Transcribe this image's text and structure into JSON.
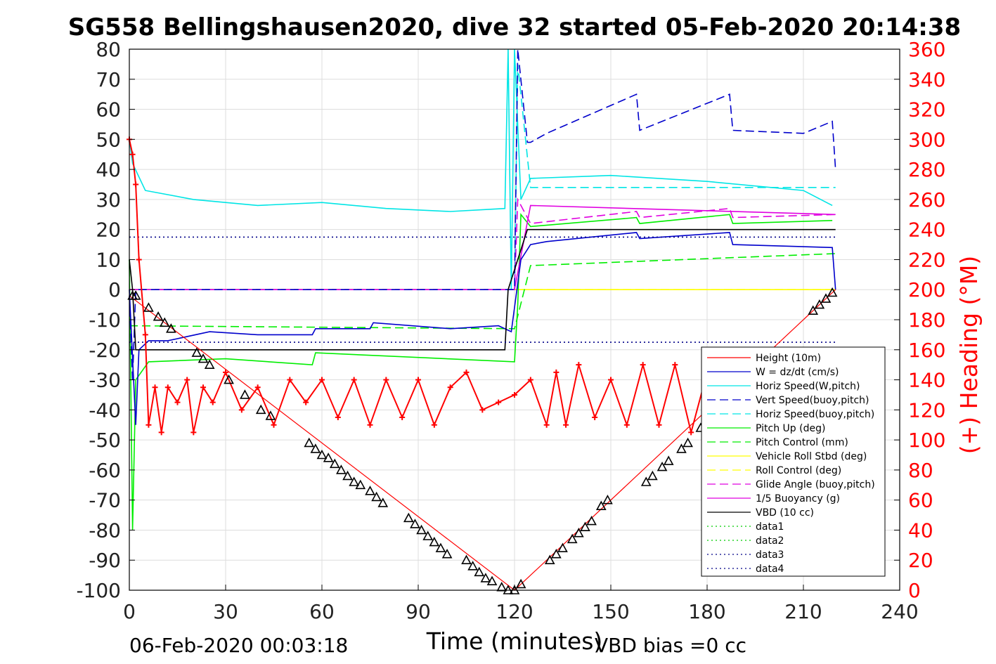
{
  "chart_data": {
    "type": "line",
    "title": "SG558 Bellingshausen2020, dive 32 started 05-Feb-2020 20:14:38",
    "xlabel": "Time (minutes)",
    "ylabel_right": "(+) Heading (°M)",
    "xlim": [
      0,
      240
    ],
    "ylim": [
      -100,
      80
    ],
    "ylim_right": [
      0,
      360
    ],
    "xticks": [
      "0",
      "30",
      "60",
      "90",
      "120",
      "150",
      "180",
      "210",
      "240"
    ],
    "yticks": [
      "80",
      "70",
      "60",
      "50",
      "40",
      "30",
      "20",
      "10",
      "0",
      "-10",
      "-20",
      "-30",
      "-40",
      "-50",
      "-60",
      "-70",
      "-80",
      "-90",
      "-100"
    ],
    "yticks_right": [
      "360",
      "340",
      "320",
      "300",
      "280",
      "260",
      "240",
      "220",
      "200",
      "180",
      "160",
      "140",
      "120",
      "100",
      "80",
      "60",
      "40",
      "20",
      "0"
    ],
    "grid": true,
    "legend_position": "lower-right",
    "footer_left": "06-Feb-2020 00:03:18",
    "footer_right": "VBD bias =0 cc",
    "colors": {
      "height": "#ff0000",
      "w": "#0000cc",
      "horiz": "#00e5e5",
      "pitch": "#00ee00",
      "roll": "#ffff00",
      "glide": "#e000e0",
      "vbd": "#000000",
      "heading": "#ff0000",
      "right_axis": "#ff0000",
      "data": "#00aa00",
      "data_dark": "#000088"
    },
    "series": [
      {
        "name": "Height (10m)",
        "x": [
          0,
          120,
          220
        ],
        "y": [
          -2,
          -100,
          0
        ]
      },
      {
        "name": "W = dz/dt (cm/s)",
        "x": [
          0,
          2,
          3,
          6,
          12,
          25,
          40,
          57,
          58,
          75,
          76,
          100,
          115,
          119,
          122,
          125,
          130,
          158,
          159,
          187,
          188,
          219,
          220
        ],
        "y": [
          0,
          -45,
          -20,
          -17,
          -17,
          -14,
          -15,
          -15,
          -13,
          -13,
          -11,
          -13,
          -12,
          -14,
          10,
          15,
          16,
          19,
          17,
          19,
          15,
          14,
          0
        ]
      },
      {
        "name": "Horiz Speed(W,pitch)",
        "x": [
          0,
          1,
          5,
          20,
          40,
          60,
          80,
          100,
          117,
          118,
          119,
          120,
          122,
          125,
          150,
          180,
          210,
          219
        ],
        "y": [
          50,
          42,
          33,
          30,
          28,
          29,
          27,
          26,
          27,
          80,
          0,
          80,
          30,
          37,
          38,
          36,
          33,
          28
        ]
      },
      {
        "name": "Vert Speed(buoy,pitch)",
        "x": [
          0,
          1,
          2,
          120,
          121,
          124,
          125,
          130,
          158,
          159,
          187,
          188,
          210,
          219,
          220
        ],
        "y": [
          -2,
          -30,
          0,
          0,
          80,
          49,
          49,
          52,
          65,
          53,
          65,
          53,
          52,
          56,
          40
        ]
      },
      {
        "name": "Horiz Speed(buoy,pitch)",
        "x": [
          0,
          120,
          121,
          125,
          220
        ],
        "y": [
          0,
          0,
          75,
          34,
          34
        ]
      },
      {
        "name": "Pitch Up (deg)",
        "x": [
          0,
          1,
          2,
          6,
          30,
          57,
          58,
          120,
          121,
          122,
          125,
          158,
          159,
          187,
          188,
          219
        ],
        "y": [
          10,
          -80,
          -30,
          -24,
          -23,
          -25,
          -21,
          -24,
          -5,
          25,
          21,
          24,
          22,
          25,
          22,
          23
        ]
      },
      {
        "name": "Pitch Control (mm)",
        "x": [
          0,
          120,
          125,
          220
        ],
        "y": [
          -12,
          -13,
          8,
          12
        ]
      },
      {
        "name": "Vehicle Roll Stbd (deg)",
        "x": [
          0,
          220
        ],
        "y": [
          0,
          0
        ]
      },
      {
        "name": "Roll Control (deg)",
        "x": [
          0,
          220
        ],
        "y": [
          0,
          0
        ]
      },
      {
        "name": "Glide Angle (buoy,pitch)",
        "x": [
          0,
          120,
          121,
          125,
          158,
          159,
          187,
          188,
          220
        ],
        "y": [
          0,
          0,
          30,
          22,
          26,
          24,
          27,
          24,
          25
        ]
      },
      {
        "name": "1/5 Buoyancy (g)",
        "x": [
          0,
          120,
          125,
          220
        ],
        "y": [
          0,
          0,
          28,
          25
        ]
      },
      {
        "name": "VBD (10 cc)",
        "x": [
          0,
          1,
          2,
          117,
          118,
          124,
          125,
          220
        ],
        "y": [
          10,
          0,
          -20,
          -20,
          0,
          20,
          20,
          20
        ]
      },
      {
        "name": "data1",
        "x": [],
        "y": []
      },
      {
        "name": "data2",
        "x": [],
        "y": []
      },
      {
        "name": "data3",
        "x": [
          0,
          220
        ],
        "y": [
          17.5,
          17.5
        ]
      },
      {
        "name": "data4",
        "x": [
          0,
          220
        ],
        "y": [
          -17.5,
          -17.5
        ]
      }
    ],
    "heading_deg": {
      "x": [
        0,
        1,
        2,
        3,
        5,
        6,
        8,
        10,
        12,
        15,
        18,
        20,
        23,
        26,
        30,
        35,
        40,
        45,
        50,
        55,
        60,
        65,
        70,
        75,
        80,
        85,
        90,
        95,
        100,
        105,
        110,
        115,
        120,
        125,
        130,
        133,
        136,
        140,
        145,
        150,
        155,
        160,
        165,
        170,
        175,
        180,
        185,
        190
      ],
      "y": [
        300,
        290,
        270,
        220,
        170,
        110,
        135,
        105,
        135,
        125,
        140,
        105,
        135,
        125,
        145,
        120,
        135,
        110,
        140,
        125,
        140,
        115,
        140,
        110,
        140,
        115,
        140,
        110,
        135,
        145,
        120,
        125,
        130,
        140,
        110,
        145,
        110,
        150,
        115,
        140,
        110,
        150,
        110,
        150,
        105,
        145,
        115,
        130
      ]
    },
    "markers": {
      "x": [
        1,
        2,
        6,
        9,
        11,
        13,
        21,
        23,
        25,
        31,
        36,
        41,
        44,
        56,
        58,
        60,
        62,
        64,
        66,
        68,
        70,
        72,
        75,
        77,
        79,
        87,
        89,
        91,
        93,
        95,
        97,
        99,
        105,
        107,
        109,
        111,
        113,
        116,
        118,
        120,
        122,
        131,
        133,
        135,
        138,
        140,
        142,
        144,
        147,
        149,
        161,
        163,
        166,
        168,
        172,
        174,
        178,
        180,
        213,
        215,
        217,
        219
      ],
      "y": [
        -2,
        -2,
        -6,
        -9,
        -11,
        -13,
        -21,
        -23,
        -25,
        -30,
        -35,
        -40,
        -42,
        -51,
        -53,
        -55,
        -56,
        -58,
        -60,
        -62,
        -64,
        -65,
        -67,
        -69,
        -71,
        -76,
        -78,
        -80,
        -82,
        -84,
        -86,
        -88,
        -90,
        -92,
        -94,
        -96,
        -97,
        -99,
        -100,
        -100,
        -98,
        -90,
        -88,
        -86,
        -83,
        -81,
        -79,
        -77,
        -72,
        -70,
        -64,
        -62,
        -59,
        -57,
        -53,
        -51,
        -46,
        -44,
        -7,
        -5,
        -3,
        -1
      ]
    }
  },
  "legend": {
    "items": [
      {
        "label": "Height (10m)",
        "color": "#ff0000",
        "style": "solid"
      },
      {
        "label": "W = dz/dt (cm/s)",
        "color": "#0000cc",
        "style": "solid"
      },
      {
        "label": "Horiz Speed(W,pitch)",
        "color": "#00e5e5",
        "style": "solid"
      },
      {
        "label": "Vert Speed(buoy,pitch)",
        "color": "#0000cc",
        "style": "dashed"
      },
      {
        "label": "Horiz Speed(buoy,pitch)",
        "color": "#00e5e5",
        "style": "dashed"
      },
      {
        "label": "Pitch Up (deg)",
        "color": "#00ee00",
        "style": "solid"
      },
      {
        "label": "Pitch Control (mm)",
        "color": "#00ee00",
        "style": "dashed"
      },
      {
        "label": "Vehicle Roll Stbd (deg)",
        "color": "#ffff00",
        "style": "solid"
      },
      {
        "label": "Roll Control (deg)",
        "color": "#ffff00",
        "style": "dashed"
      },
      {
        "label": "Glide Angle (buoy,pitch)",
        "color": "#e000e0",
        "style": "dashed"
      },
      {
        "label": "1/5 Buoyancy (g)",
        "color": "#e000e0",
        "style": "solid"
      },
      {
        "label": "VBD (10 cc)",
        "color": "#000000",
        "style": "solid"
      },
      {
        "label": "data1",
        "color": "#00cc00",
        "style": "dotted"
      },
      {
        "label": "data2",
        "color": "#00cc00",
        "style": "dotted"
      },
      {
        "label": "data3",
        "color": "#000088",
        "style": "dotted"
      },
      {
        "label": "data4",
        "color": "#000088",
        "style": "dotted"
      }
    ]
  }
}
